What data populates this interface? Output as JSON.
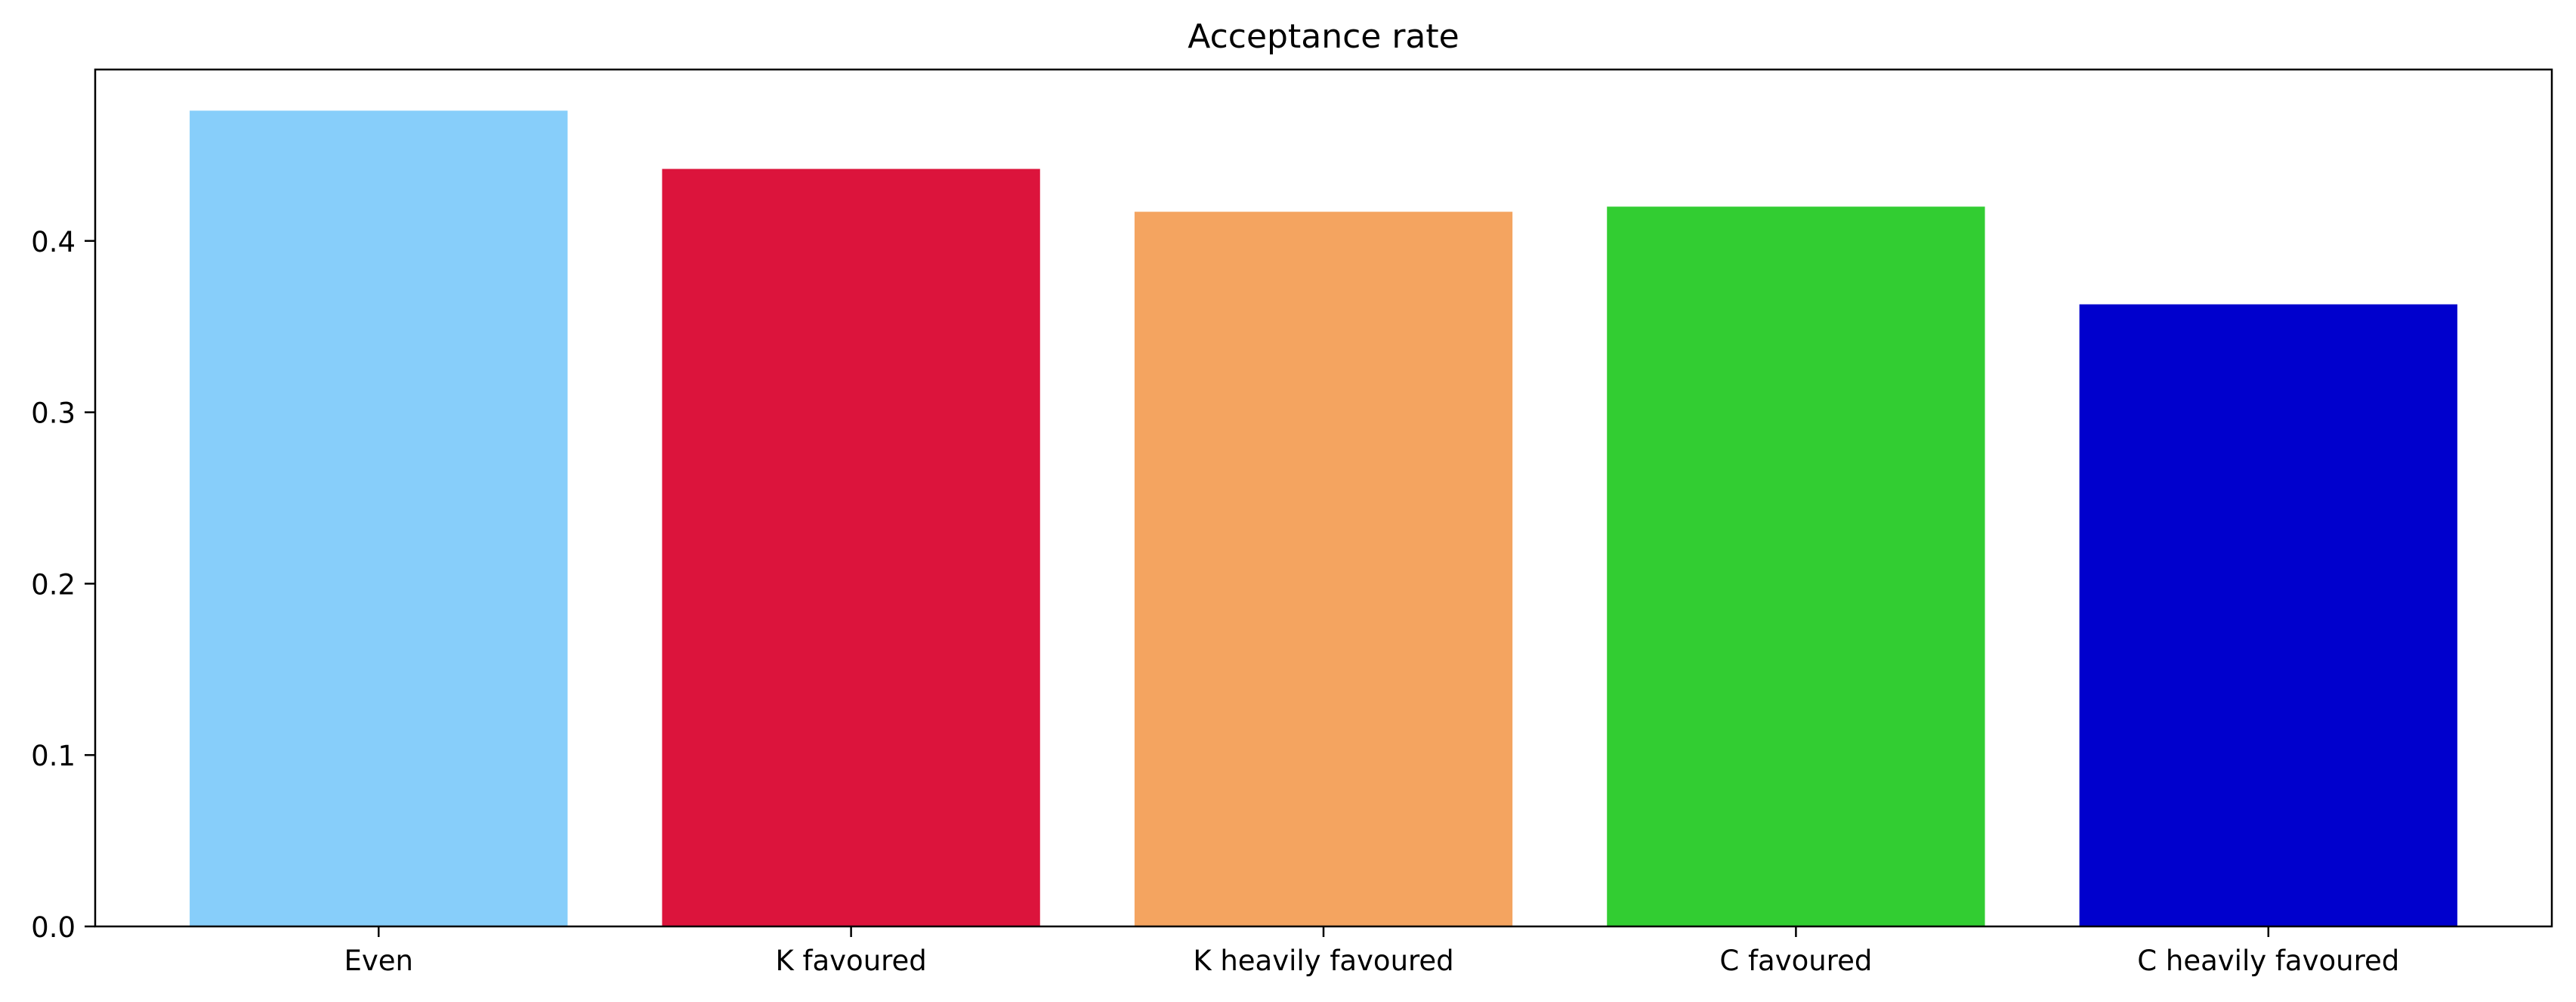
{
  "chart_data": {
    "type": "bar",
    "title": "Acceptance rate",
    "xlabel": "",
    "ylabel": "",
    "categories": [
      "Even",
      "K favoured",
      "K heavily favoured",
      "C favoured",
      "C heavily favoured"
    ],
    "values": [
      0.476,
      0.442,
      0.417,
      0.42,
      0.363
    ],
    "colors": [
      "#87CEFA",
      "#DC143C",
      "#F4A460",
      "#32CD32",
      "#0000CD"
    ],
    "ylim": [
      0,
      0.5
    ],
    "yticks": [
      0.0,
      0.1,
      0.2,
      0.3,
      0.4
    ],
    "ytick_labels": [
      "0.0",
      "0.1",
      "0.2",
      "0.3",
      "0.4"
    ],
    "grid": false,
    "legend": "none"
  }
}
